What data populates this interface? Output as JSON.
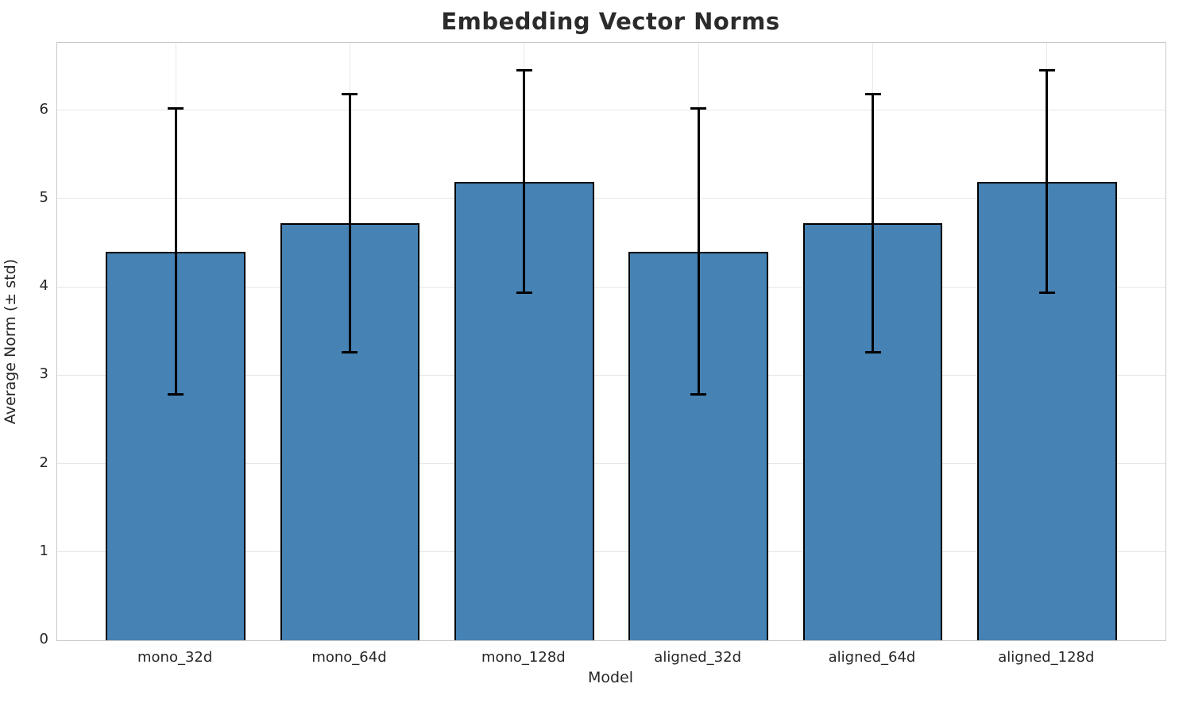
{
  "figure": {
    "title": "Embedding Vector Norms",
    "xlabel": "Model",
    "ylabel": "Average Norm (± std)"
  },
  "chart_data": {
    "type": "bar",
    "title": "Embedding Vector Norms",
    "xlabel": "Model",
    "ylabel": "Average Norm (± std)",
    "categories": [
      "mono_32d",
      "mono_64d",
      "mono_128d",
      "aligned_32d",
      "aligned_64d",
      "aligned_128d"
    ],
    "series": [
      {
        "name": "Average Norm",
        "values": [
          4.4,
          4.72,
          5.19,
          4.4,
          4.72,
          5.19
        ]
      }
    ],
    "error_std": [
      1.62,
      1.46,
      1.26,
      1.62,
      1.46,
      1.26
    ],
    "yticks": [
      0,
      1,
      2,
      3,
      4,
      5,
      6
    ],
    "ylim": [
      0,
      6.76
    ],
    "grid": true,
    "legend": "none",
    "bar_color": "#4682b4",
    "bar_edge_color": "#000000",
    "errorbar_color": "#000000",
    "grid_color": "#e7e7e7",
    "spine_color": "#c9c9c9",
    "text_color": "#262626",
    "title_color": "#2b2b2b",
    "background_color": "#ffffff"
  }
}
